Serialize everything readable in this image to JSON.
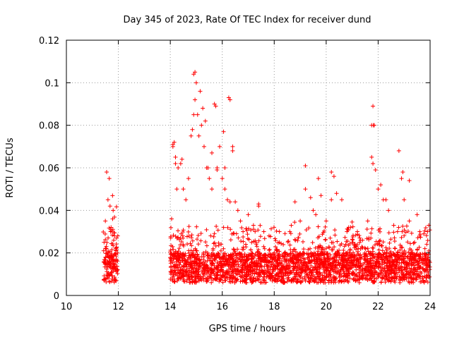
{
  "chart_data": {
    "type": "scatter",
    "title": "Day 345 of 2023, Rate Of TEC Index for receiver dund",
    "xlabel": "GPS time / hours",
    "ylabel": "ROTI / TECUs",
    "xlim": [
      10,
      24
    ],
    "ylim": [
      0,
      0.12
    ],
    "x_ticks": [
      "10",
      "12",
      "14",
      "16",
      "18",
      "20",
      "22",
      "24"
    ],
    "y_ticks": [
      "0",
      "0.02",
      "0.04",
      "0.06",
      "0.08",
      "0.1",
      "0.12"
    ],
    "grid": true,
    "grid_style": "dotted",
    "marker": "plus",
    "color": "#ff0000",
    "series": [
      {
        "x": [
          11.45,
          11.5,
          11.55,
          11.6,
          11.65,
          11.7,
          11.75,
          11.8,
          11.85,
          11.9,
          11.95,
          11.52,
          11.62,
          11.72,
          11.82,
          11.58,
          11.68,
          11.78,
          11.88,
          14.05,
          14.1,
          14.15,
          14.2,
          14.25,
          14.3,
          14.4,
          14.5,
          14.6,
          14.7,
          14.8,
          14.9,
          14.95,
          15.0,
          15.1,
          15.2,
          15.3,
          15.4,
          15.5,
          15.6,
          15.7,
          15.8,
          15.9,
          16.0,
          16.1,
          16.2,
          16.3,
          16.4,
          16.5,
          16.6,
          16.7,
          16.8,
          17.0,
          17.2,
          17.4,
          17.6,
          17.8,
          18.0,
          18.2,
          18.4,
          18.6,
          18.8,
          19.0,
          19.2,
          19.4,
          19.6,
          19.8,
          20.0,
          20.2,
          20.4,
          20.6,
          20.8,
          21.0,
          21.2,
          21.4,
          21.6,
          21.75,
          21.8,
          21.85,
          22.0,
          22.2,
          22.4,
          22.6,
          22.8,
          23.0,
          23.2,
          23.4,
          23.6,
          23.8,
          23.95,
          14.9,
          14.95,
          15.05,
          15.15,
          14.85,
          15.25,
          15.35,
          15.6,
          15.75,
          15.8,
          16.1,
          16.25,
          16.4,
          14.1,
          14.2,
          14.45,
          15.45,
          16.05,
          16.3,
          17.4,
          18.2,
          19.2,
          19.5,
          19.7,
          20.2,
          20.3,
          21.8,
          21.82,
          21.75,
          21.9,
          22.1,
          22.3,
          22.9,
          22.95,
          23.2,
          23.5,
          23.9
        ],
        "y": [
          0.025,
          0.035,
          0.058,
          0.045,
          0.055,
          0.03,
          0.018,
          0.04,
          0.028,
          0.022,
          0.012,
          0.015,
          0.02,
          0.032,
          0.026,
          0.01,
          0.042,
          0.036,
          0.016,
          0.036,
          0.07,
          0.072,
          0.062,
          0.05,
          0.06,
          0.062,
          0.05,
          0.045,
          0.055,
          0.075,
          0.085,
          0.105,
          0.1,
          0.075,
          0.08,
          0.07,
          0.06,
          0.055,
          0.05,
          0.09,
          0.06,
          0.07,
          0.055,
          0.05,
          0.045,
          0.092,
          0.07,
          0.044,
          0.04,
          0.035,
          0.03,
          0.038,
          0.033,
          0.043,
          0.03,
          0.028,
          0.02,
          0.025,
          0.02,
          0.03,
          0.044,
          0.035,
          0.061,
          0.046,
          0.038,
          0.047,
          0.035,
          0.058,
          0.048,
          0.045,
          0.03,
          0.025,
          0.03,
          0.026,
          0.035,
          0.065,
          0.089,
          0.08,
          0.05,
          0.045,
          0.04,
          0.033,
          0.068,
          0.045,
          0.035,
          0.025,
          0.03,
          0.022,
          0.033,
          0.104,
          0.092,
          0.085,
          0.096,
          0.078,
          0.088,
          0.082,
          0.067,
          0.089,
          0.059,
          0.06,
          0.093,
          0.068,
          0.071,
          0.065,
          0.064,
          0.06,
          0.077,
          0.044,
          0.042,
          0.03,
          0.05,
          0.04,
          0.055,
          0.045,
          0.056,
          0.062,
          0.08,
          0.08,
          0.059,
          0.052,
          0.045,
          0.055,
          0.058,
          0.054,
          0.038,
          0.03
        ]
      }
    ]
  }
}
